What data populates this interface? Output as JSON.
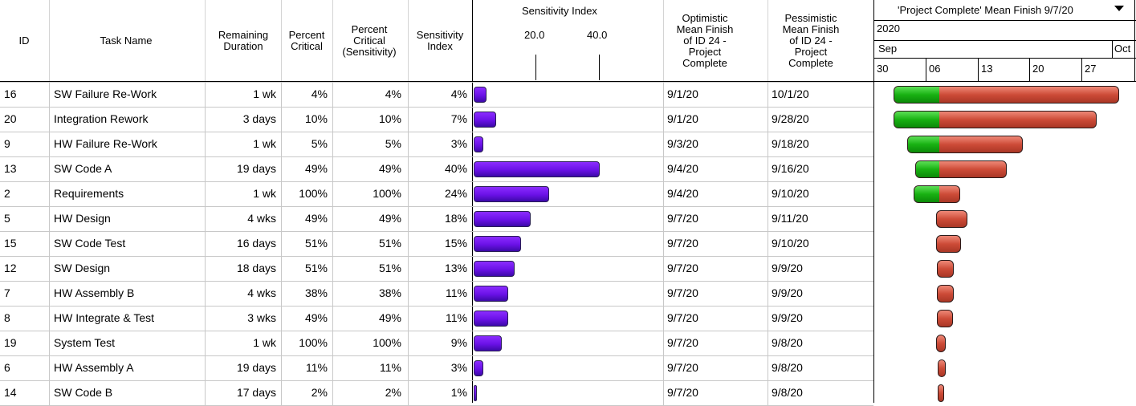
{
  "columns": {
    "id": "ID",
    "task_name": "Task Name",
    "remaining_duration": "Remaining\nDuration",
    "percent_critical": "Percent\nCritical",
    "percent_critical_sensitivity": "Percent\nCritical\n(Sensitivity)",
    "sensitivity_index": "Sensitivity\nIndex",
    "sensitivity_chart_title": "Sensitivity Index",
    "sensitivity_tick_20": "20.0",
    "sensitivity_tick_40": "40.0",
    "optimistic": "Optimistic\nMean Finish\nof ID 24 -\nProject\nComplete",
    "pessimistic": "Pessimistic\nMean Finish\nof ID 24 -\nProject\nComplete"
  },
  "gantt": {
    "title": "'Project Complete' Mean Finish 9/7/20",
    "year": "2020",
    "month_sep": "Sep",
    "month_oct": "Oct",
    "days": [
      "30",
      "06",
      "13",
      "20",
      "27"
    ],
    "dropdown_icon": "triangle-down-icon"
  },
  "rows": [
    {
      "id": "16",
      "name": "SW Failure Re-Work",
      "dur": "1 wk",
      "pc": "4%",
      "pcs": "4%",
      "si": "4%",
      "si_val": 4,
      "opt": "9/1/20",
      "pes": "10/1/20",
      "g_start": 25,
      "g_split": 81,
      "g_end": 306
    },
    {
      "id": "20",
      "name": "Integration Rework",
      "dur": "3 days",
      "pc": "10%",
      "pcs": "10%",
      "si": "7%",
      "si_val": 7,
      "opt": "9/1/20",
      "pes": "9/28/20",
      "g_start": 25,
      "g_split": 81,
      "g_end": 278
    },
    {
      "id": "9",
      "name": "HW Failure Re-Work",
      "dur": "1 wk",
      "pc": "5%",
      "pcs": "5%",
      "si": "3%",
      "si_val": 3,
      "opt": "9/3/20",
      "pes": "9/18/20",
      "g_start": 42,
      "g_split": 81,
      "g_end": 186
    },
    {
      "id": "13",
      "name": "SW Code A",
      "dur": "19 days",
      "pc": "49%",
      "pcs": "49%",
      "si": "40%",
      "si_val": 40,
      "opt": "9/4/20",
      "pes": "9/16/20",
      "g_start": 52,
      "g_split": 81,
      "g_end": 166
    },
    {
      "id": "2",
      "name": "Requirements",
      "dur": "1 wk",
      "pc": "100%",
      "pcs": "100%",
      "si": "24%",
      "si_val": 24,
      "opt": "9/4/20",
      "pes": "9/10/20",
      "g_start": 50,
      "g_split": 81,
      "g_end": 108
    },
    {
      "id": "5",
      "name": "HW Design",
      "dur": "4 wks",
      "pc": "49%",
      "pcs": "49%",
      "si": "18%",
      "si_val": 18,
      "opt": "9/7/20",
      "pes": "9/11/20",
      "g_start": 78,
      "g_split": 78,
      "g_end": 117
    },
    {
      "id": "15",
      "name": "SW Code Test",
      "dur": "16 days",
      "pc": "51%",
      "pcs": "51%",
      "si": "15%",
      "si_val": 15,
      "opt": "9/7/20",
      "pes": "9/10/20",
      "g_start": 78,
      "g_split": 78,
      "g_end": 109
    },
    {
      "id": "12",
      "name": "SW Design",
      "dur": "18 days",
      "pc": "51%",
      "pcs": "51%",
      "si": "13%",
      "si_val": 13,
      "opt": "9/7/20",
      "pes": "9/9/20",
      "g_start": 79,
      "g_split": 79,
      "g_end": 100
    },
    {
      "id": "7",
      "name": "HW Assembly B",
      "dur": "4 wks",
      "pc": "38%",
      "pcs": "38%",
      "si": "11%",
      "si_val": 11,
      "opt": "9/7/20",
      "pes": "9/9/20",
      "g_start": 79,
      "g_split": 79,
      "g_end": 100
    },
    {
      "id": "8",
      "name": "HW Integrate & Test",
      "dur": "3 wks",
      "pc": "49%",
      "pcs": "49%",
      "si": "11%",
      "si_val": 11,
      "opt": "9/7/20",
      "pes": "9/9/20",
      "g_start": 79,
      "g_split": 79,
      "g_end": 99
    },
    {
      "id": "19",
      "name": "System Test",
      "dur": "1 wk",
      "pc": "100%",
      "pcs": "100%",
      "si": "9%",
      "si_val": 9,
      "opt": "9/7/20",
      "pes": "9/8/20",
      "g_start": 78,
      "g_split": 78,
      "g_end": 90
    },
    {
      "id": "6",
      "name": "HW Assembly A",
      "dur": "19 days",
      "pc": "11%",
      "pcs": "11%",
      "si": "3%",
      "si_val": 3,
      "opt": "9/7/20",
      "pes": "9/8/20",
      "g_start": 80,
      "g_split": 80,
      "g_end": 90
    },
    {
      "id": "14",
      "name": "SW Code B",
      "dur": "17 days",
      "pc": "2%",
      "pcs": "2%",
      "si": "1%",
      "si_val": 1,
      "opt": "9/7/20",
      "pes": "9/8/20",
      "g_start": 80,
      "g_split": 80,
      "g_end": 88
    }
  ]
}
